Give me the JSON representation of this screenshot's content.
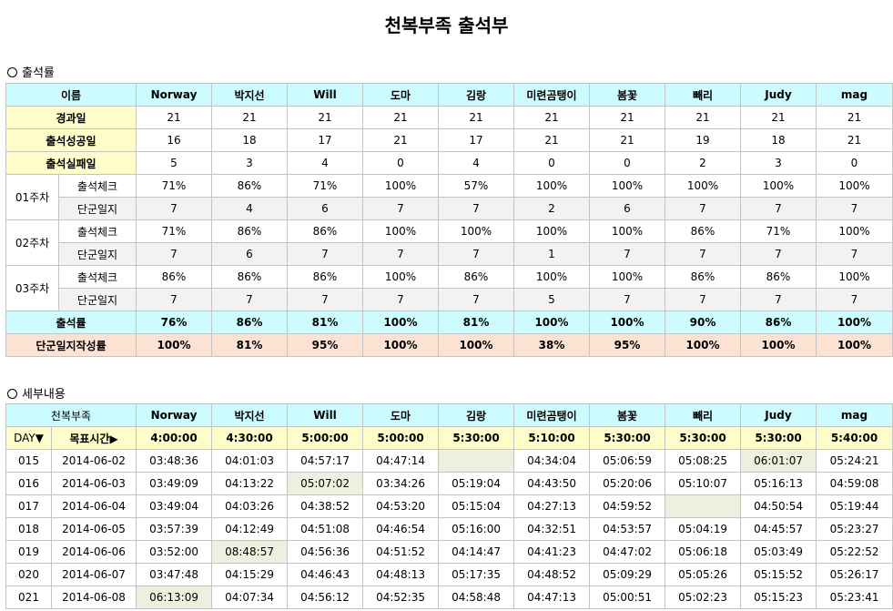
{
  "page_title": "천복부족 출석부",
  "attendance": {
    "section_label": "출석률",
    "header": [
      "이름",
      "Norway",
      "박지선",
      "Will",
      "도마",
      "김랑",
      "미련곰탱이",
      "봄꽃",
      "빼리",
      "Judy",
      "mag"
    ],
    "summary_rows": [
      {
        "label": "경과일",
        "values": [
          "21",
          "21",
          "21",
          "21",
          "21",
          "21",
          "21",
          "21",
          "21",
          "21"
        ]
      },
      {
        "label": "출석성공일",
        "values": [
          "16",
          "18",
          "17",
          "21",
          "17",
          "21",
          "21",
          "19",
          "18",
          "21"
        ]
      },
      {
        "label": "출석실패일",
        "values": [
          "5",
          "3",
          "4",
          "0",
          "4",
          "0",
          "0",
          "2",
          "3",
          "0"
        ]
      }
    ],
    "weeks": [
      {
        "week": "01주차",
        "rows": [
          {
            "label": "출석체크",
            "values": [
              "71%",
              "86%",
              "71%",
              "100%",
              "57%",
              "100%",
              "100%",
              "100%",
              "100%",
              "100%"
            ]
          },
          {
            "label": "단군일지",
            "values": [
              "7",
              "4",
              "6",
              "7",
              "7",
              "2",
              "6",
              "7",
              "7",
              "7"
            ]
          }
        ]
      },
      {
        "week": "02주차",
        "rows": [
          {
            "label": "출석체크",
            "values": [
              "71%",
              "86%",
              "86%",
              "100%",
              "100%",
              "100%",
              "100%",
              "86%",
              "71%",
              "100%"
            ]
          },
          {
            "label": "단군일지",
            "values": [
              "7",
              "6",
              "7",
              "7",
              "7",
              "1",
              "7",
              "7",
              "7",
              "7"
            ]
          }
        ]
      },
      {
        "week": "03주차",
        "rows": [
          {
            "label": "출석체크",
            "values": [
              "86%",
              "86%",
              "86%",
              "100%",
              "86%",
              "100%",
              "100%",
              "86%",
              "86%",
              "100%"
            ]
          },
          {
            "label": "단군일지",
            "values": [
              "7",
              "7",
              "7",
              "7",
              "7",
              "5",
              "7",
              "7",
              "7",
              "7"
            ]
          }
        ]
      }
    ],
    "rate_row": {
      "label": "출석률",
      "values": [
        "76%",
        "86%",
        "81%",
        "100%",
        "81%",
        "100%",
        "100%",
        "90%",
        "86%",
        "100%"
      ]
    },
    "journal_row": {
      "label": "단군일지작성률",
      "values": [
        "100%",
        "81%",
        "95%",
        "100%",
        "100%",
        "38%",
        "95%",
        "100%",
        "100%",
        "100%"
      ]
    }
  },
  "details": {
    "section_label": "세부내용",
    "header": [
      "천복부족",
      "Norway",
      "박지선",
      "Will",
      "도마",
      "김랑",
      "미련곰탱이",
      "봄꽃",
      "빼리",
      "Judy",
      "mag"
    ],
    "target_row": {
      "day_label": "DAY▼",
      "target_label": "목표시간▶",
      "values": [
        "4:00:00",
        "4:30:00",
        "5:00:00",
        "5:00:00",
        "5:30:00",
        "5:10:00",
        "5:30:00",
        "5:30:00",
        "5:30:00",
        "5:40:00"
      ]
    },
    "rows": [
      {
        "day": "015",
        "date": "2014-06-02",
        "values": [
          "03:48:36",
          "04:01:03",
          "04:57:17",
          "04:47:14",
          "",
          "04:34:04",
          "05:06:59",
          "05:08:25",
          "06:01:07",
          "05:24:21"
        ],
        "highlight": [
          4,
          8
        ]
      },
      {
        "day": "016",
        "date": "2014-06-03",
        "values": [
          "03:49:09",
          "04:13:22",
          "05:07:02",
          "03:34:26",
          "05:19:04",
          "04:43:50",
          "05:20:06",
          "05:10:07",
          "05:16:13",
          "04:59:08"
        ],
        "highlight": [
          2
        ]
      },
      {
        "day": "017",
        "date": "2014-06-04",
        "values": [
          "03:49:04",
          "04:03:26",
          "04:38:52",
          "04:53:20",
          "05:15:04",
          "04:27:13",
          "04:59:52",
          "",
          "04:50:54",
          "05:19:44"
        ],
        "highlight": [
          7
        ]
      },
      {
        "day": "018",
        "date": "2014-06-05",
        "values": [
          "03:57:39",
          "04:12:49",
          "04:51:08",
          "04:46:54",
          "05:16:00",
          "04:32:51",
          "04:53:57",
          "05:04:19",
          "04:45:57",
          "05:23:27"
        ],
        "highlight": []
      },
      {
        "day": "019",
        "date": "2014-06-06",
        "values": [
          "03:52:00",
          "08:48:57",
          "04:56:36",
          "04:51:52",
          "04:14:47",
          "04:41:23",
          "04:47:02",
          "05:06:18",
          "05:03:49",
          "05:22:52"
        ],
        "highlight": [
          1
        ]
      },
      {
        "day": "020",
        "date": "2014-06-07",
        "values": [
          "03:47:48",
          "04:15:29",
          "04:46:43",
          "04:48:13",
          "05:17:35",
          "04:48:52",
          "05:09:29",
          "05:05:26",
          "05:15:52",
          "05:26:17"
        ],
        "highlight": []
      },
      {
        "day": "021",
        "date": "2014-06-08",
        "values": [
          "06:13:09",
          "04:07:34",
          "04:56:12",
          "04:52:35",
          "04:58:48",
          "04:47:13",
          "05:00:51",
          "05:02:23",
          "05:15:23",
          "05:23:41"
        ],
        "highlight": [
          0
        ]
      }
    ]
  }
}
